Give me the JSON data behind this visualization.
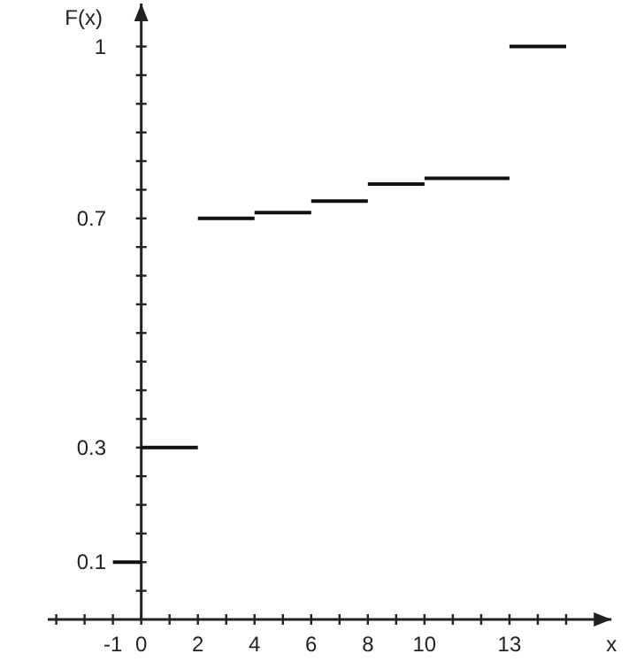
{
  "chart_data": {
    "type": "line",
    "xlabel": "x",
    "ylabel": "F(x)",
    "series": [
      {
        "color": "#111111",
        "x": [
          -1,
          0
        ],
        "values": [
          0.1,
          0.1
        ]
      },
      {
        "color": "#111111",
        "x": [
          0,
          2
        ],
        "values": [
          0.3,
          0.3
        ]
      },
      {
        "color": "#111111",
        "x": [
          2,
          4
        ],
        "values": [
          0.7,
          0.7
        ]
      },
      {
        "color": "#111111",
        "x": [
          4,
          6
        ],
        "values": [
          0.71,
          0.71
        ]
      },
      {
        "color": "#111111",
        "x": [
          6,
          8
        ],
        "values": [
          0.73,
          0.73
        ]
      },
      {
        "color": "#111111",
        "x": [
          8,
          10
        ],
        "values": [
          0.76,
          0.76
        ]
      },
      {
        "color": "#111111",
        "x": [
          10,
          13
        ],
        "values": [
          0.77,
          0.77
        ]
      },
      {
        "color": "#111111",
        "x": [
          13,
          15
        ],
        "values": [
          1,
          1
        ]
      }
    ],
    "xlim": [
      -3.3,
      16.6
    ],
    "ylim": [
      0,
      1.075
    ],
    "xticks": [
      {
        "value": -3,
        "label": null
      },
      {
        "value": -2,
        "label": null
      },
      -1,
      0,
      {
        "value": 1,
        "label": null
      },
      2,
      {
        "value": 3,
        "label": null
      },
      4,
      {
        "value": 5,
        "label": null
      },
      6,
      {
        "value": 7,
        "label": null
      },
      8,
      {
        "value": 9,
        "label": null
      },
      10,
      {
        "value": 11,
        "label": null
      },
      {
        "value": 12,
        "label": null
      },
      13,
      {
        "value": 14,
        "label": null
      },
      {
        "value": 15,
        "label": null
      }
    ],
    "yticks": [
      {
        "value": 0.05,
        "label": null
      },
      0.1,
      {
        "value": 0.15,
        "label": null
      },
      {
        "value": 0.2,
        "label": null
      },
      {
        "value": 0.25,
        "label": null
      },
      0.3,
      {
        "value": 0.35,
        "label": null
      },
      {
        "value": 0.4,
        "label": null
      },
      {
        "value": 0.45,
        "label": null
      },
      {
        "value": 0.5,
        "label": null
      },
      {
        "value": 0.55,
        "label": null
      },
      {
        "value": 0.6,
        "label": null
      },
      {
        "value": 0.65,
        "label": null
      },
      0.7,
      {
        "value": 0.75,
        "label": null
      },
      {
        "value": 0.8,
        "label": null
      },
      {
        "value": 0.85,
        "label": null
      },
      {
        "value": 0.9,
        "label": null
      },
      {
        "value": 0.95,
        "label": null
      },
      1
    ],
    "grid": false,
    "line_style": "solid"
  }
}
